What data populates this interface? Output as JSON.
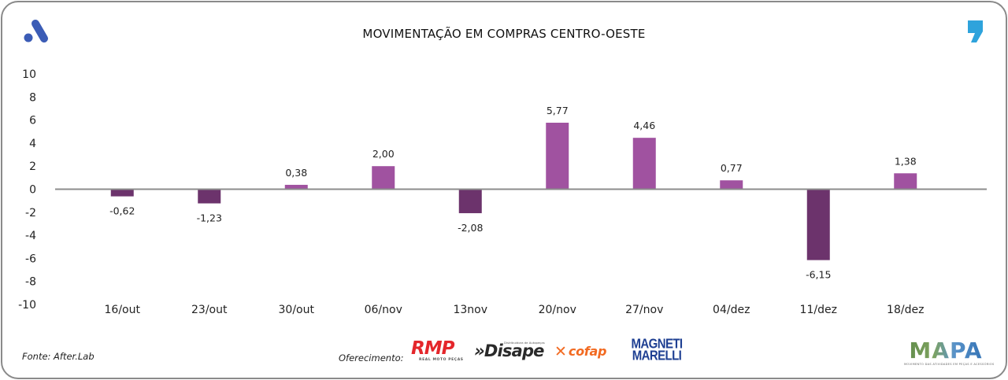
{
  "header": {
    "title": "MOVIMENTAÇÃO EM COMPRAS CENTRO-OESTE",
    "brand_icon": "a-logo-icon",
    "quote_icon": "quote-mark-icon"
  },
  "colors": {
    "positive_bar": "#a052a0",
    "negative_bar": "#6c336c",
    "baseline": "#8c8c8c",
    "brand_blue": "#3b5cb6",
    "quote_blue": "#2ea3dc"
  },
  "chart_data": {
    "type": "bar",
    "title": "MOVIMENTAÇÃO EM COMPRAS CENTRO-OESTE",
    "xlabel": "",
    "ylabel": "",
    "categories": [
      "16/out",
      "23/out",
      "30/out",
      "06/nov",
      "13nov",
      "20/nov",
      "27/nov",
      "04/dez",
      "11/dez",
      "18/dez"
    ],
    "values": [
      -0.62,
      -1.23,
      0.38,
      2.0,
      -2.08,
      5.77,
      4.46,
      0.77,
      -6.15,
      1.38
    ],
    "data_labels": [
      "-0,62",
      "-1,23",
      "0,38",
      "2,00",
      "-2,08",
      "5,77",
      "4,46",
      "0,77",
      "-6,15",
      "1,38"
    ],
    "ylim": [
      -10,
      10
    ],
    "yticks": [
      10,
      8,
      6,
      4,
      2,
      0,
      -2,
      -4,
      -6,
      -8,
      -10
    ],
    "ytick_labels": [
      "10",
      "8",
      "6",
      "4",
      "2",
      "0",
      "-2",
      "-4",
      "-6",
      "-8",
      "-10"
    ],
    "grid": false,
    "legend": "none"
  },
  "footer": {
    "source": "Fonte: After.Lab",
    "offered_by": "Oferecimento:",
    "sponsors": {
      "rmp": {
        "name": "RMP",
        "tagline": "REAL MOTO PEÇAS"
      },
      "disape": {
        "name": "»Disape",
        "tagline": "Distribuidora de Autopeças"
      },
      "cofap": {
        "name": "cofap",
        "symbol": "✕"
      },
      "marelli": {
        "line1": "MAGNETI",
        "line2": "MARELLI"
      }
    },
    "mapa": {
      "name": "MAPA",
      "tagline": "MOVIMENTO DAS ATIVIDADES EM PEÇAS E ACESSÓRIOS"
    }
  }
}
